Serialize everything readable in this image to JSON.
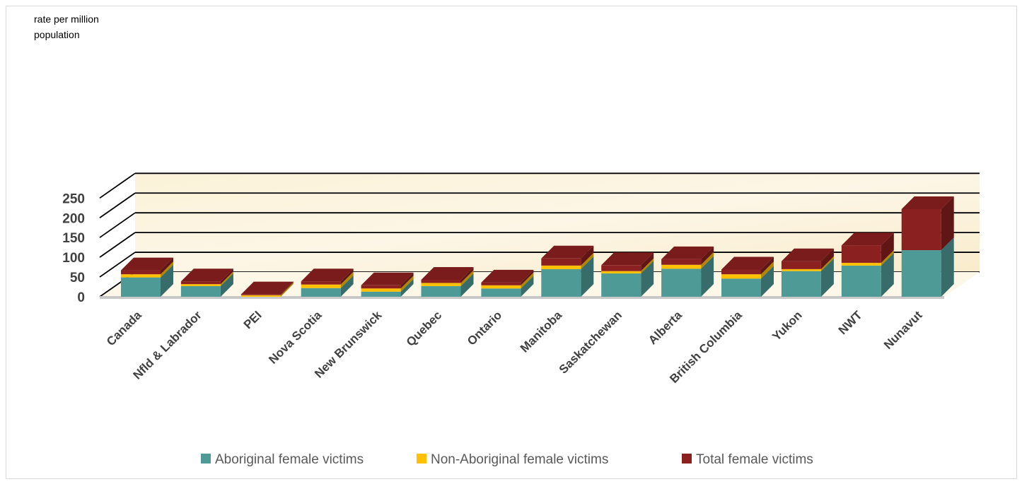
{
  "chart_data": {
    "type": "bar",
    "stacked": true,
    "three_d": true,
    "title": "",
    "ylabel": "rate per million population",
    "xlabel": "",
    "ylim": [
      0,
      250
    ],
    "yticks": [
      0,
      50,
      100,
      150,
      200,
      250
    ],
    "grid": true,
    "legend_position": "bottom",
    "categories": [
      "Canada",
      "Nfld & Labrador",
      "PEI",
      "Nova Scotia",
      "New Brunswick",
      "Quebec",
      "Ontario",
      "Manitoba",
      "Saskatchewan",
      "Alberta",
      "British Columbia",
      "Yukon",
      "NWT",
      "Nunavut"
    ],
    "series": [
      {
        "name": "Aboriginal female victims",
        "color": "#4E9A97",
        "values": [
          49,
          27,
          0,
          22,
          13,
          27,
          21,
          70,
          59,
          71,
          46,
          65,
          79,
          118
        ]
      },
      {
        "name": "Non-Aboriginal female victims",
        "color": "#FFC000",
        "values": [
          8,
          5,
          4,
          9,
          8,
          8,
          8,
          9,
          6,
          10,
          11,
          5,
          7,
          0
        ]
      },
      {
        "name": "Total female victims",
        "color": "#8B2020",
        "values": [
          10,
          7,
          2,
          8,
          8,
          8,
          7,
          18,
          15,
          14,
          12,
          20,
          44,
          104
        ]
      }
    ]
  }
}
